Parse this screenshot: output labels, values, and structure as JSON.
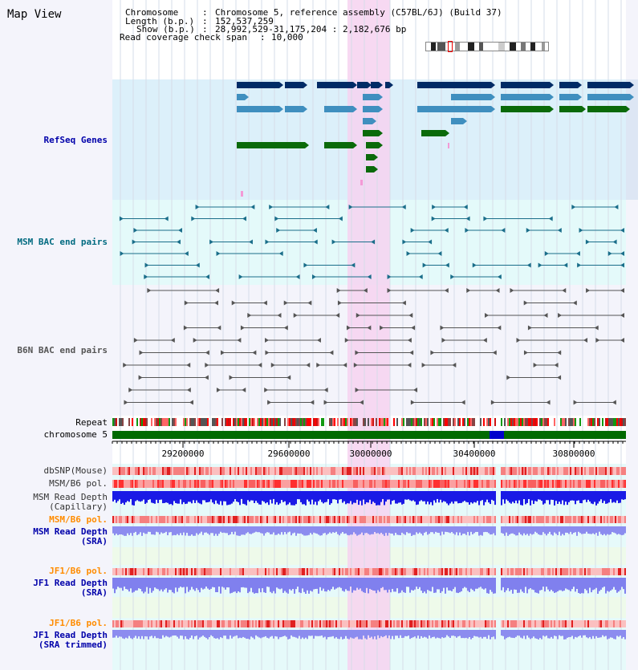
{
  "view": {
    "title": "Map View",
    "info": {
      "chromosome_label": "Chromosome",
      "chromosome_value": "Chromosome 5, reference assembly (C57BL/6J) (Build 37)",
      "length_label": "Length (b.p.)",
      "length_value": "152,537,259",
      "show_label": "Show (b.p.)",
      "show_value": "28,992,529-31,175,204 : 2,182,676 bp",
      "coverage_label": "Read coverage check span",
      "coverage_value": "10,000"
    }
  },
  "tracks": {
    "refseq": "RefSeq Genes",
    "msm_bac": "MSM BAC end pairs",
    "b6n_bac": "B6N BAC end pairs",
    "repeat": "Repeat",
    "chromosome": "chromosome 5",
    "dbsnp": "dbSNP(Mouse)",
    "msm_b6_pol": "MSM/B6 pol.",
    "msm_depth_cap_1": "MSM Read Depth",
    "msm_depth_cap_2": "(Capillary)",
    "msm_b6_pol_sra": "MSM/B6 pol.",
    "msm_depth_sra_1": "MSM Read Depth",
    "msm_depth_sra_2": "(SRA)",
    "jf1_b6_pol": "JF1/B6 pol.",
    "jf1_depth_sra_1": "JF1 Read Depth",
    "jf1_depth_sra_2": "(SRA)",
    "jf1_b6_pol_trim": "JF1/B6 pol.",
    "jf1_depth_trim_1": "JF1 Read Depth",
    "jf1_depth_trim_2": "(SRA trimmed)"
  },
  "axis": {
    "ticks": [
      "29200000",
      "29600000",
      "30000000",
      "30400000",
      "30800000"
    ]
  },
  "colors": {
    "gene_dark": "#002b66",
    "gene_mid": "#3f8fbf",
    "gene_green": "#0a6a0a",
    "bac_msm": "#1a6e8a",
    "bac_b6n": "#555555",
    "highlight": "#f6d2f0",
    "refseq_bg": "#dcf0fa",
    "msm_bg": "#e4fafa",
    "b6n_bg": "#f4f4fb",
    "label_blue": "#0000aa",
    "label_teal": "#006a80",
    "label_orange": "#ff8c00"
  }
}
